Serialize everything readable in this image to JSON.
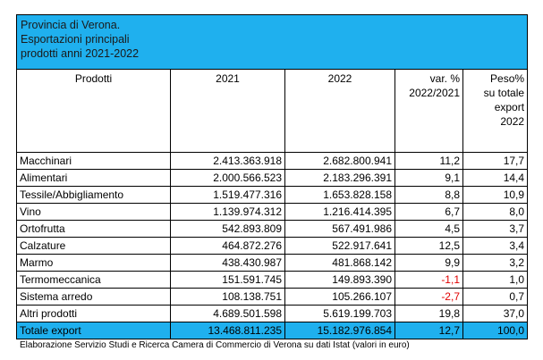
{
  "title_lines": [
    "Provincia di Verona.",
    "Esportazioni principali",
    "prodotti anni 2021-2022"
  ],
  "headers": {
    "product": "Prodotti",
    "y2021": "2021",
    "y2022": "2022",
    "var_lines": [
      "var. %",
      "2022/2021"
    ],
    "share_lines": [
      "Peso%",
      "su totale",
      "export",
      "2022"
    ]
  },
  "rows": [
    {
      "name": "Macchinari",
      "v2021": "2.413.363.918",
      "v2022": "2.682.800.941",
      "var": "11,2",
      "share": "17,7"
    },
    {
      "name": "Alimentari",
      "v2021": "2.000.566.523",
      "v2022": "2.183.296.391",
      "var": "9,1",
      "share": "14,4"
    },
    {
      "name": "Tessile/Abbigliamento",
      "v2021": "1.519.477.316",
      "v2022": "1.653.828.158",
      "var": "8,8",
      "share": "10,9"
    },
    {
      "name": "Vino",
      "v2021": "1.139.974.312",
      "v2022": "1.216.414.395",
      "var": "6,7",
      "share": "8,0"
    },
    {
      "name": "Ortofrutta",
      "v2021": "542.893.809",
      "v2022": "567.491.986",
      "var": "4,5",
      "share": "3,7"
    },
    {
      "name": "Calzature",
      "v2021": "464.872.276",
      "v2022": "522.917.641",
      "var": "12,5",
      "share": "3,4"
    },
    {
      "name": "Marmo",
      "v2021": "438.430.987",
      "v2022": "481.868.142",
      "var": "9,9",
      "share": "3,2"
    },
    {
      "name": "Termomeccanica",
      "v2021": "151.591.745",
      "v2022": "149.893.390",
      "var": "-1,1",
      "share": "1,0"
    },
    {
      "name": "Sistema arredo",
      "v2021": "108.138.751",
      "v2022": "105.266.107",
      "var": "-2,7",
      "share": "0,7"
    },
    {
      "name": "Altri prodotti",
      "v2021": "4.689.501.598",
      "v2022": "5.619.199.703",
      "var": "19,8",
      "share": "37,0"
    }
  ],
  "total": {
    "name": "Totale export",
    "v2021": "13.468.811.235",
    "v2022": "15.182.976.854",
    "var": "12,7",
    "share": "100,0"
  },
  "note": "Elaborazione Servizio Studi e Ricerca Camera di Commercio di Verona su dati Istat (valori in euro)",
  "colors": {
    "header_bg": "#1fb0ee",
    "negative": "#e00000"
  }
}
